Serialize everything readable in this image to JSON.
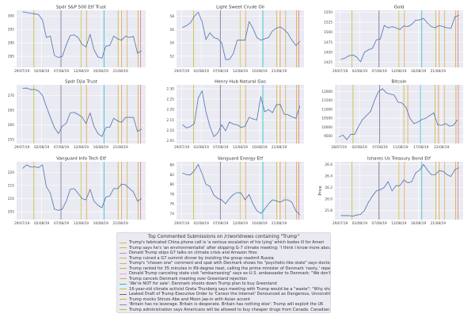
{
  "style": {
    "axes_bg": "#eaeaf2",
    "grid": "#ffffff",
    "series_color": "#4c72b0",
    "text": "#444444"
  },
  "chart_data": [
    {
      "type": "line",
      "title": "Spdr S&P 500 Etf Trust",
      "ylabel": "",
      "grid": true,
      "xticks": [
        "29/07/19",
        "02/08/19",
        "07/08/19",
        "12/08/19",
        "16/08/19",
        "21/08/19"
      ],
      "yticks": [
        285,
        290,
        295,
        300
      ],
      "ylim": [
        280.9,
        302.1
      ],
      "x": [
        "2019-07-29T04",
        "2019-07-29T23",
        "2019-07-30T18",
        "2019-07-31T14",
        "2019-08-01T09",
        "2019-08-02T05",
        "2019-08-03T05",
        "2019-08-04T05",
        "2019-08-05T06",
        "2019-08-06T06",
        "2019-08-07T06",
        "2019-08-08T06",
        "2019-08-09T06",
        "2019-08-10T06",
        "2019-08-11T06",
        "2019-08-12T05",
        "2019-08-13T00",
        "2019-08-13T20",
        "2019-08-14T15",
        "2019-08-15T10",
        "2019-08-16T07",
        "2019-08-17T07",
        "2019-08-18T07",
        "2019-08-19T07",
        "2019-08-20T07",
        "2019-08-21T07",
        "2019-08-22T07",
        "2019-08-23T07",
        "2019-08-24T07",
        "2019-08-25T08",
        "2019-08-26T08"
      ],
      "values": [
        301.5,
        301.3,
        301,
        300.8,
        300.5,
        298.5,
        292,
        292.5,
        285.3,
        284.6,
        285,
        289.3,
        292.7,
        293,
        292,
        289.5,
        288.5,
        293.2,
        287.5,
        284.8,
        284.3,
        288.8,
        289,
        292.5,
        291.5,
        291,
        292.5,
        292,
        292.4,
        286.2,
        287
      ]
    },
    {
      "type": "line",
      "title": "Light Sweet Crude Oil",
      "ylabel": "",
      "grid": true,
      "xticks": [
        "29/07/19",
        "02/08/19",
        "07/08/19",
        "12/08/19",
        "16/08/19",
        "21/08/19"
      ],
      "yticks": [
        52,
        54,
        56,
        58
      ],
      "ylim": [
        50.3,
        58.9
      ],
      "x": [
        "2019-07-29T04",
        "2019-07-29T23",
        "2019-07-30T18",
        "2019-07-31T14",
        "2019-08-01T09",
        "2019-08-02T05",
        "2019-08-03T05",
        "2019-08-04T05",
        "2019-08-05T06",
        "2019-08-06T06",
        "2019-08-07T06",
        "2019-08-08T06",
        "2019-08-09T06",
        "2019-08-10T06",
        "2019-08-11T06",
        "2019-08-12T05",
        "2019-08-13T00",
        "2019-08-13T20",
        "2019-08-14T15",
        "2019-08-15T10",
        "2019-08-16T07",
        "2019-08-17T07",
        "2019-08-18T07",
        "2019-08-19T07",
        "2019-08-20T07",
        "2019-08-21T07",
        "2019-08-22T07",
        "2019-08-23T07",
        "2019-08-24T07",
        "2019-08-25T08",
        "2019-08-26T08"
      ],
      "values": [
        56.3,
        56.6,
        57,
        58,
        58.6,
        57.2,
        54.5,
        55.5,
        54.8,
        54.6,
        54,
        51.5,
        51.5,
        52.4,
        54.4,
        54.4,
        54.4,
        57.2,
        56.2,
        54.8,
        54.4,
        54.6,
        54.8,
        55.8,
        56.2,
        56.4,
        56,
        55.4,
        54.4,
        53.6,
        54.2
      ]
    },
    {
      "type": "line",
      "title": "Gold",
      "ylabel": "",
      "grid": true,
      "xticks": [
        "29/07/19",
        "02/08/19",
        "07/08/19",
        "12/08/19",
        "16/08/19",
        "21/08/19"
      ],
      "yticks": [
        1425,
        1450,
        1475,
        1500,
        1525,
        1550
      ],
      "ylim": [
        1412,
        1555
      ],
      "x": [
        "2019-07-29T04",
        "2019-07-29T23",
        "2019-07-30T18",
        "2019-07-31T14",
        "2019-08-01T09",
        "2019-08-02T05",
        "2019-08-03T05",
        "2019-08-04T05",
        "2019-08-05T06",
        "2019-08-06T06",
        "2019-08-07T06",
        "2019-08-08T06",
        "2019-08-09T06",
        "2019-08-10T06",
        "2019-08-11T06",
        "2019-08-12T05",
        "2019-08-13T00",
        "2019-08-13T20",
        "2019-08-14T15",
        "2019-08-15T10",
        "2019-08-16T07",
        "2019-08-17T07",
        "2019-08-18T07",
        "2019-08-19T07",
        "2019-08-20T07",
        "2019-08-21T07",
        "2019-08-22T07",
        "2019-08-23T07",
        "2019-08-24T07",
        "2019-08-25T08",
        "2019-08-26T08"
      ],
      "values": [
        1432,
        1435,
        1441,
        1443,
        1438,
        1426,
        1450,
        1456,
        1460,
        1481,
        1483,
        1517,
        1511,
        1514,
        1511,
        1507,
        1516,
        1514,
        1520,
        1530,
        1531,
        1535,
        1523,
        1514,
        1511,
        1517,
        1514,
        1511,
        1510,
        1539,
        1542
      ]
    },
    {
      "type": "line",
      "title": "Spdr Djia Trust",
      "ylabel": "",
      "grid": true,
      "xticks": [
        "29/07/19",
        "02/08/19",
        "07/08/19",
        "12/08/19",
        "16/08/19",
        "21/08/19"
      ],
      "yticks": [
        255,
        260,
        265,
        270
      ],
      "ylim": [
        253.6,
        273.6
      ],
      "x": [
        "2019-07-29T04",
        "2019-07-29T23",
        "2019-07-30T18",
        "2019-07-31T14",
        "2019-08-01T09",
        "2019-08-02T05",
        "2019-08-03T05",
        "2019-08-04T05",
        "2019-08-05T06",
        "2019-08-06T06",
        "2019-08-07T06",
        "2019-08-08T06",
        "2019-08-09T06",
        "2019-08-10T06",
        "2019-08-11T06",
        "2019-08-12T05",
        "2019-08-13T00",
        "2019-08-13T20",
        "2019-08-14T15",
        "2019-08-15T10",
        "2019-08-16T07",
        "2019-08-17T07",
        "2019-08-18T07",
        "2019-08-19T07",
        "2019-08-20T07",
        "2019-08-21T07",
        "2019-08-22T07",
        "2019-08-23T07",
        "2019-08-24T07",
        "2019-08-25T08",
        "2019-08-26T08"
      ],
      "values": [
        272.4,
        272.5,
        272,
        272,
        271.5,
        270,
        266.2,
        262.5,
        259,
        257,
        259.5,
        260.5,
        264,
        264.2,
        263.5,
        262.6,
        260.4,
        264,
        259.5,
        257,
        256,
        259,
        259.2,
        262.2,
        261.3,
        260.8,
        262.5,
        262.5,
        262.5,
        257.7,
        258.5
      ]
    },
    {
      "type": "line",
      "title": "Henry Hub Natural Gas",
      "ylabel": "",
      "grid": true,
      "xticks": [
        "29/07/19",
        "02/08/19",
        "07/08/19",
        "12/08/19",
        "16/08/19",
        "21/08/19"
      ],
      "yticks": [
        2.05,
        2.1,
        2.15,
        2.2,
        2.25,
        2.3
      ],
      "ylim": [
        2.037,
        2.319
      ],
      "x": [
        "2019-07-29T04",
        "2019-07-29T23",
        "2019-07-30T18",
        "2019-07-31T14",
        "2019-08-01T09",
        "2019-08-02T05",
        "2019-08-03T05",
        "2019-08-04T05",
        "2019-08-05T06",
        "2019-08-06T06",
        "2019-08-07T06",
        "2019-08-08T06",
        "2019-08-09T06",
        "2019-08-10T06",
        "2019-08-11T06",
        "2019-08-12T05",
        "2019-08-13T00",
        "2019-08-13T20",
        "2019-08-14T15",
        "2019-08-15T10",
        "2019-08-16T07",
        "2019-08-17T07",
        "2019-08-18T07",
        "2019-08-19T07",
        "2019-08-20T07",
        "2019-08-21T07",
        "2019-08-22T07",
        "2019-08-23T07",
        "2019-08-24T07",
        "2019-08-25T08",
        "2019-08-26T08"
      ],
      "values": [
        2.127,
        2.112,
        2.118,
        2.133,
        2.255,
        2.29,
        2.19,
        2.12,
        2.07,
        2.088,
        2.127,
        2.098,
        2.14,
        2.13,
        2.127,
        2.114,
        2.12,
        2.163,
        2.155,
        2.15,
        2.262,
        2.19,
        2.2,
        2.185,
        2.223,
        2.225,
        2.178,
        2.175,
        2.165,
        2.158,
        2.217
      ]
    },
    {
      "type": "line",
      "title": "Bitcoin",
      "ylabel": "",
      "grid": true,
      "xticks": [
        "28/07/19",
        "02/08/19",
        "07/08/19",
        "11/08/19",
        "17/08/19",
        "22/08/19"
      ],
      "yticks": [
        9500,
        10000,
        10500,
        11000,
        11500,
        12000
      ],
      "ylim": [
        9080,
        12374
      ],
      "x": [
        "2019-07-28T00",
        "2019-07-28T23",
        "2019-07-29T22",
        "2019-07-30T21",
        "2019-07-31T20",
        "2019-08-01T19",
        "2019-08-02T18",
        "2019-08-03T17",
        "2019-08-04T17",
        "2019-08-05T16",
        "2019-08-06T15",
        "2019-08-07T11",
        "2019-08-08T06",
        "2019-08-09T00",
        "2019-08-09T18",
        "2019-08-10T13",
        "2019-08-11T11",
        "2019-08-12T15",
        "2019-08-13T18",
        "2019-08-14T22",
        "2019-08-16T02",
        "2019-08-17T05",
        "2019-08-18T04",
        "2019-08-19T03",
        "2019-08-20T02",
        "2019-08-21T01",
        "2019-08-22T00",
        "2019-08-22T23",
        "2019-08-23T22",
        "2019-08-24T21",
        "2019-08-25T20"
      ],
      "values": [
        9450,
        9550,
        9300,
        9600,
        9600,
        10050,
        10430,
        10650,
        10880,
        11500,
        12000,
        12150,
        11925,
        11850,
        11800,
        11400,
        11350,
        11100,
        10500,
        10200,
        10280,
        10430,
        10500,
        10650,
        10800,
        10130,
        10100,
        10200,
        10054,
        10100,
        10400
      ]
    },
    {
      "type": "line",
      "title": "Vanguard Info Tech Etf",
      "ylabel": "",
      "grid": true,
      "xticks": [
        "29/07/19",
        "02/08/19",
        "07/08/19",
        "12/08/19",
        "16/08/19",
        "21/08/19"
      ],
      "yticks": [
        205,
        210,
        215,
        220
      ],
      "ylim": [
        202,
        224
      ],
      "x": [
        "2019-07-29T04",
        "2019-07-29T23",
        "2019-07-30T18",
        "2019-07-31T14",
        "2019-08-01T09",
        "2019-08-02T05",
        "2019-08-03T05",
        "2019-08-04T05",
        "2019-08-05T06",
        "2019-08-06T06",
        "2019-08-07T06",
        "2019-08-08T06",
        "2019-08-09T06",
        "2019-08-10T06",
        "2019-08-11T06",
        "2019-08-12T05",
        "2019-08-13T00",
        "2019-08-13T20",
        "2019-08-14T15",
        "2019-08-15T10",
        "2019-08-16T07",
        "2019-08-17T07",
        "2019-08-18T07",
        "2019-08-19T07",
        "2019-08-20T07",
        "2019-08-21T07",
        "2019-08-22T07",
        "2019-08-23T07",
        "2019-08-24T07",
        "2019-08-25T08",
        "2019-08-26T08"
      ],
      "values": [
        221.5,
        222.8,
        222,
        222,
        221.8,
        222.8,
        214.5,
        212,
        206,
        205.5,
        206,
        209,
        213.5,
        213.8,
        212,
        210,
        209.5,
        213.5,
        209,
        207.5,
        206.5,
        210.5,
        211,
        213.8,
        213.8,
        215.5,
        215.2,
        213.8,
        212.5,
        209,
        210
      ]
    },
    {
      "type": "line",
      "title": "Vanguard Energy Etf",
      "ylabel": "",
      "grid": true,
      "xticks": [
        "29/07/19",
        "02/08/19",
        "07/08/19",
        "12/08/19",
        "16/08/19",
        "21/08/19"
      ],
      "yticks": [
        74,
        76,
        78,
        80,
        82,
        84
      ],
      "ylim": [
        72.75,
        84.65
      ],
      "x": [
        "2019-07-29T04",
        "2019-07-29T23",
        "2019-07-30T18",
        "2019-07-31T14",
        "2019-08-01T09",
        "2019-08-02T05",
        "2019-08-03T05",
        "2019-08-04T05",
        "2019-08-05T06",
        "2019-08-06T06",
        "2019-08-07T06",
        "2019-08-08T06",
        "2019-08-09T06",
        "2019-08-10T06",
        "2019-08-11T06",
        "2019-08-12T05",
        "2019-08-13T00",
        "2019-08-13T20",
        "2019-08-14T15",
        "2019-08-15T10",
        "2019-08-16T07",
        "2019-08-17T07",
        "2019-08-18T07",
        "2019-08-19T07",
        "2019-08-20T07",
        "2019-08-21T07",
        "2019-08-22T07",
        "2019-08-23T07",
        "2019-08-24T07",
        "2019-08-25T08",
        "2019-08-26T08"
      ],
      "values": [
        82.3,
        82,
        81.95,
        82.8,
        84.1,
        82.2,
        80,
        79.6,
        77.8,
        77.1,
        76.8,
        76,
        77.1,
        77.9,
        78.3,
        78.2,
        76.8,
        77.9,
        76,
        74.6,
        74,
        74.9,
        76,
        76.8,
        76.6,
        76.3,
        76.8,
        76.8,
        76.3,
        74.5,
        73.8
      ]
    },
    {
      "type": "line",
      "title": "Ishares Us Treasury Bond Etf",
      "ylabel": "Price",
      "grid": true,
      "xticks": [
        "29/07/19",
        "02/08/19",
        "07/08/19",
        "12/08/19",
        "16/08/19",
        "21/08/19"
      ],
      "yticks": [
        25.8,
        26.0,
        26.2,
        26.4,
        26.6
      ],
      "ylim": [
        25.64,
        26.646
      ],
      "x": [
        "2019-07-29T04",
        "2019-07-29T23",
        "2019-07-30T18",
        "2019-07-31T14",
        "2019-08-01T09",
        "2019-08-02T05",
        "2019-08-03T05",
        "2019-08-04T05",
        "2019-08-05T06",
        "2019-08-06T06",
        "2019-08-07T06",
        "2019-08-08T06",
        "2019-08-09T06",
        "2019-08-10T06",
        "2019-08-11T06",
        "2019-08-12T05",
        "2019-08-13T00",
        "2019-08-13T20",
        "2019-08-14T15",
        "2019-08-15T10",
        "2019-08-16T07",
        "2019-08-17T07",
        "2019-08-18T07",
        "2019-08-19T07",
        "2019-08-20T07",
        "2019-08-21T07",
        "2019-08-22T07",
        "2019-08-23T07",
        "2019-08-24T07",
        "2019-08-25T08",
        "2019-08-26T08"
      ],
      "values": [
        25.71,
        25.71,
        25.71,
        25.7,
        25.72,
        25.73,
        25.8,
        25.94,
        26.05,
        26.14,
        26.16,
        26.2,
        26.3,
        26.14,
        26.23,
        26.23,
        26.33,
        26.28,
        26.3,
        26.45,
        26.5,
        26.6,
        26.5,
        26.42,
        26.42,
        26.49,
        26.48,
        26.42,
        26.39,
        26.51,
        26.54
      ]
    }
  ],
  "legend": {
    "title": "Top Commented Submissions on /r/worldnews containing \"Trump\"",
    "placement": "bottom-center",
    "items": [
      {
        "label": "Trump's fabricated China phone call is 'a serious escalation of his lying' which bodes ill for Ameri",
        "color": "#d8b84a",
        "date": "2019-08-25T12"
      },
      {
        "label": "Trump says he's 'an environmentalist' after skipping G-7 climate meeting: 'I think I know more about",
        "color": "#c8c030",
        "date": "2019-08-26T02"
      },
      {
        "label": "Donald Trump skips G7 talks on climate crisis and Amazon fires",
        "color": "#e377c2",
        "date": "2019-08-26T02"
      },
      {
        "label": "Trump ruined a G7 summit dinner by insisting the group readmit Russia",
        "color": "#d4b44a",
        "date": "2019-08-25T12"
      },
      {
        "label": "Trump's \"chosen one\" comment and spat with Denmark shows his \"psychotic-like state\" says doctor who",
        "color": "#d4b44a",
        "date": "2019-08-22T16"
      },
      {
        "label": "Trump ranted for 35 minutes in 89-degree heat, calling the prime minister of Denmark 'nasty,' repeat",
        "color": "#f0a040",
        "date": "2019-08-13T03"
      },
      {
        "label": "Donald Trump canceling state visit \"embarrassing\" says ex-U.S. ambassador to Denmark: \"We don't trea",
        "color": "#e8a0d8",
        "date": "2019-08-21T06"
      },
      {
        "label": "Trump cancels Denmark meeting over Greenland rejection",
        "color": "#f0a040",
        "date": "2019-08-21T06"
      },
      {
        "label": "'We're NOT for sale': Denmark shoots down Trump plan to buy Greenland",
        "color": "#17becf",
        "date": "2019-08-16T20"
      },
      {
        "label": "16-year-old climate activist Greta Thunberg says meeting with Trump would be a \"waste\": \"Why should",
        "color": "#c8c030",
        "date": "2019-08-12T00"
      },
      {
        "label": "Leaked Draft of Trump Executive Order to 'Censor the Internet' Denounced as Dangerous, Unconstitutio",
        "color": "#8c5a5a",
        "date": "2019-08-06T22"
      },
      {
        "label": "Trump mocks Shinzo Abe and Moon Jae-in with Asian accent",
        "color": "#bcbd22",
        "date": "2019-07-31T10"
      },
      {
        "label": "'Britain has no leverage. Britain is desperate. Britain has nothing else': Trump will exploit the UK",
        "color": "#8a8ab8",
        "date": "2019-08-06T22"
      },
      {
        "label": "Trump administration says Americans will be allowed to buy cheaper drugs from Canada. Canadian Pharm",
        "color": "#bcbd22",
        "date": "2019-08-20T10"
      }
    ]
  }
}
